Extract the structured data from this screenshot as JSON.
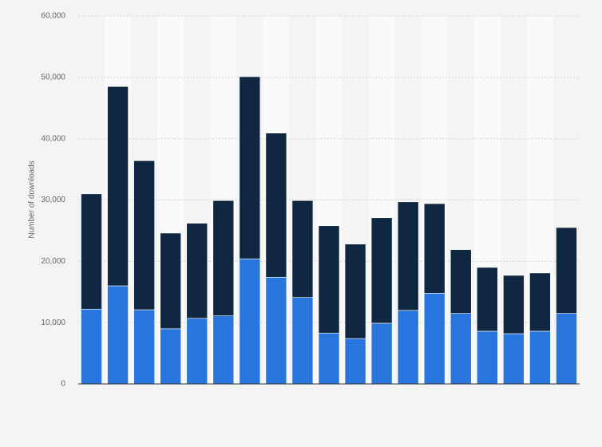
{
  "chart_data": {
    "type": "stacked-bar",
    "y_label": "Number of downloads",
    "categories": [
      null,
      null,
      null,
      null,
      null,
      null,
      null,
      null,
      null,
      null,
      null,
      null,
      null,
      null,
      null,
      null,
      null,
      null,
      null
    ],
    "series": [
      {
        "color": "#2876dd",
        "values": [
          12200,
          16000,
          12100,
          9000,
          10700,
          11100,
          20400,
          17400,
          14100,
          8300,
          7400,
          9900,
          12000,
          14800,
          11500,
          8600,
          8200,
          8600,
          11500
        ]
      },
      {
        "color": "#0f2741",
        "values": [
          18800,
          32500,
          24300,
          15600,
          15500,
          18800,
          29700,
          23500,
          15800,
          17500,
          15400,
          17200,
          17700,
          14600,
          10400,
          10400,
          9500,
          9500,
          14000
        ]
      }
    ],
    "ylim": [
      0,
      60000
    ],
    "yticks": [
      0,
      {
        "value": 10000,
        "label": "10,000"
      },
      {
        "value": 20000,
        "label": "20,000"
      },
      {
        "value": 30000,
        "label": "30,000"
      },
      {
        "value": 40000,
        "label": "40,000"
      },
      {
        "value": 50000,
        "label": "50,000"
      },
      {
        "value": 60000,
        "label": "60,000"
      }
    ],
    "grid": true
  }
}
